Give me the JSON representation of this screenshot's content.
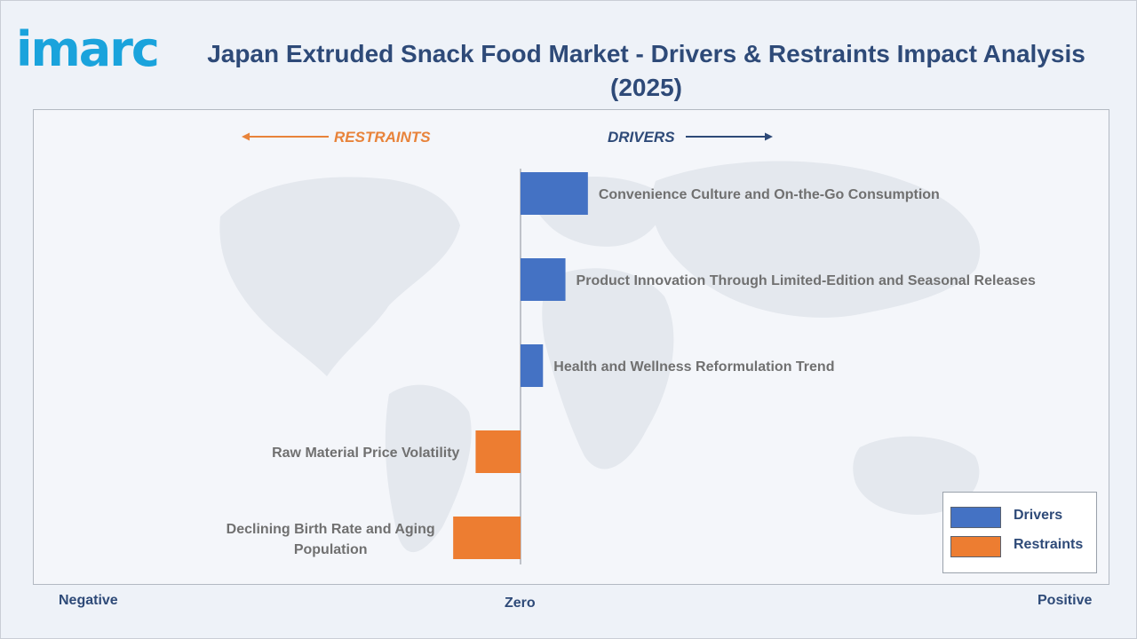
{
  "brand": {
    "logo_text": "imarc",
    "logo_color": "#1aa3dc"
  },
  "title": "Japan Extruded Snack Food Market - Drivers & Restraints Impact Analysis (2025)",
  "direction_labels": {
    "restraints": "RESTRAINTS",
    "drivers": "DRIVERS"
  },
  "axis_labels": {
    "negative": "Negative",
    "zero": "Zero",
    "positive": "Positive"
  },
  "colors": {
    "drivers": "#4472c4",
    "restraints": "#ed7d31",
    "title": "#2e4a78",
    "label": "#707070"
  },
  "legend": {
    "drivers": "Drivers",
    "restraints": "Restraints"
  },
  "chart_data": {
    "type": "bar",
    "orientation": "horizontal",
    "categories": [
      "Convenience Culture and On-the-Go Consumption",
      "Product Innovation Through Limited-Edition and Seasonal Releases",
      "Health and Wellness Reformulation Trend",
      "Raw Material Price Volatility",
      "Declining Birth Rate and Aging Population"
    ],
    "series": [
      {
        "name": "Drivers",
        "values": [
          3.0,
          2.0,
          1.0,
          null,
          null
        ]
      },
      {
        "name": "Restraints",
        "values": [
          null,
          null,
          null,
          -2.0,
          -3.0
        ]
      }
    ],
    "xlim": [
      -14,
      16
    ],
    "grid": false,
    "legend_position": "bottom-right"
  }
}
